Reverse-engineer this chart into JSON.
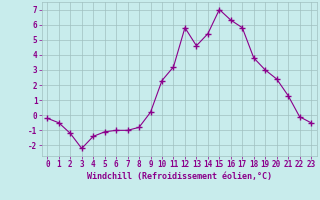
{
  "x": [
    0,
    1,
    2,
    3,
    4,
    5,
    6,
    7,
    8,
    9,
    10,
    11,
    12,
    13,
    14,
    15,
    16,
    17,
    18,
    19,
    20,
    21,
    22,
    23
  ],
  "y": [
    -0.2,
    -0.5,
    -1.2,
    -2.2,
    -1.4,
    -1.1,
    -1.0,
    -1.0,
    -0.8,
    0.2,
    2.3,
    3.2,
    5.8,
    4.6,
    5.4,
    7.0,
    6.3,
    5.8,
    3.8,
    3.0,
    2.4,
    1.3,
    -0.1,
    -0.5
  ],
  "line_color": "#8B008B",
  "marker": "+",
  "marker_size": 4,
  "bg_color": "#c8ecec",
  "grid_color": "#a0c0c0",
  "xlabel": "Windchill (Refroidissement éolien,°C)",
  "ylabel_ticks": [
    -2,
    -1,
    0,
    1,
    2,
    3,
    4,
    5,
    6,
    7
  ],
  "xlim": [
    -0.5,
    23.5
  ],
  "ylim": [
    -2.7,
    7.5
  ],
  "xlabel_color": "#8B008B",
  "tick_color": "#8B008B",
  "label_fontsize": 6,
  "tick_fontsize": 5.5
}
